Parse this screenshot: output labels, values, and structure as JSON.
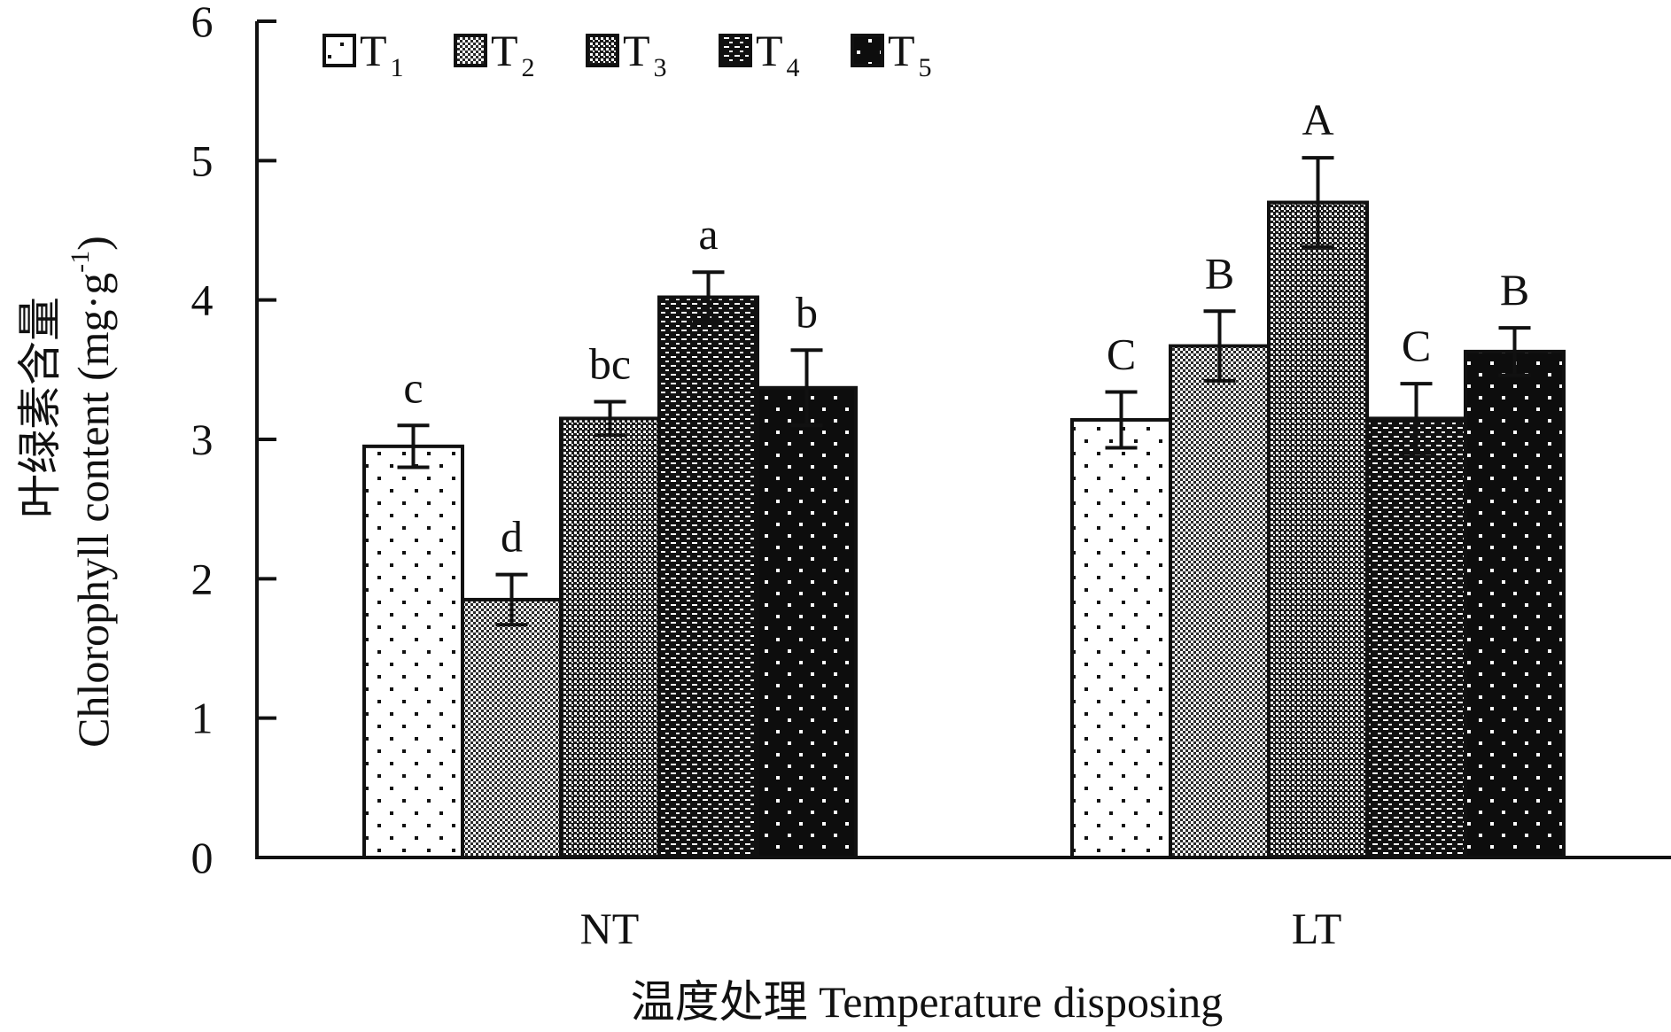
{
  "chart_data": {
    "type": "bar",
    "title": "",
    "xlabel": "温度处理 Temperature disposing",
    "ylabel_cn": "叶绿素含量",
    "ylabel_en": "Chlorophyll content (mg·g",
    "ylabel_sup": "-1",
    "ylabel_close": ")",
    "ylim": [
      0,
      6
    ],
    "yticks": [
      0,
      1,
      2,
      3,
      4,
      5,
      6
    ],
    "categories": [
      "NT",
      "LT"
    ],
    "series": [
      {
        "name": "T",
        "sub": "1",
        "pattern": "p1",
        "values": [
          2.95,
          3.14
        ],
        "errors": [
          0.15,
          0.2
        ],
        "labels": [
          "c",
          "C"
        ]
      },
      {
        "name": "T",
        "sub": "2",
        "pattern": "p2",
        "values": [
          1.85,
          3.67
        ],
        "errors": [
          0.18,
          0.25
        ],
        "labels": [
          "d",
          "B"
        ]
      },
      {
        "name": "T",
        "sub": "3",
        "pattern": "p3",
        "values": [
          3.15,
          4.7
        ],
        "errors": [
          0.12,
          0.32
        ],
        "labels": [
          "bc",
          "A"
        ]
      },
      {
        "name": "T",
        "sub": "4",
        "pattern": "p4",
        "values": [
          4.02,
          3.15
        ],
        "errors": [
          0.18,
          0.25
        ],
        "labels": [
          "a",
          "C"
        ]
      },
      {
        "name": "T",
        "sub": "5",
        "pattern": "p5",
        "values": [
          3.37,
          3.63
        ],
        "errors": [
          0.27,
          0.17
        ],
        "labels": [
          "b",
          "B"
        ]
      }
    ],
    "legend_position": "top-left",
    "grid": false
  }
}
